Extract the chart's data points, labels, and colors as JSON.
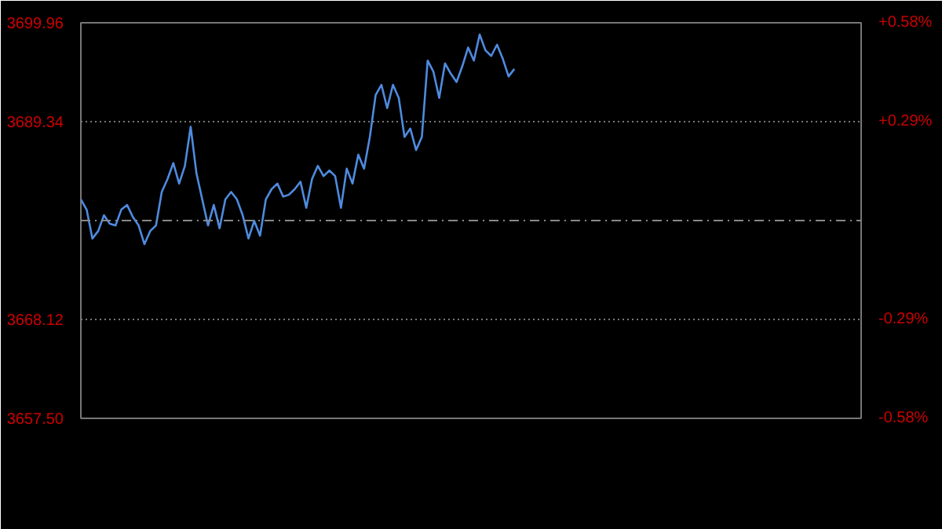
{
  "chart_data": {
    "type": "line",
    "categories": [
      null,
      null,
      null,
      null,
      null,
      null,
      null,
      null,
      null,
      null,
      null,
      null,
      null,
      null,
      null,
      null,
      null,
      null,
      null,
      null,
      null,
      null,
      null,
      null,
      null,
      null,
      null,
      null,
      null,
      null,
      null,
      null,
      null,
      null,
      null,
      null,
      null,
      null,
      null,
      null,
      null,
      null,
      null,
      null,
      null,
      null,
      null,
      null,
      null,
      null,
      null,
      null,
      null,
      null,
      null,
      null,
      null,
      null,
      null,
      null,
      null,
      null,
      null,
      null,
      null,
      null,
      null,
      null,
      null,
      null,
      null,
      null,
      null,
      null,
      null,
      null,
      null,
      null,
      null,
      null,
      null,
      null,
      null,
      null,
      null,
      null,
      null,
      null,
      null,
      null,
      null,
      null,
      null,
      null,
      null,
      null,
      null,
      null,
      null,
      null,
      null,
      null,
      null,
      null,
      null,
      null,
      null,
      null,
      null,
      null,
      null,
      null,
      null,
      null,
      null,
      null,
      null,
      null,
      null,
      null,
      null,
      null,
      null,
      null,
      null,
      null,
      null,
      null,
      null,
      null,
      null,
      null,
      null,
      null,
      null,
      null
    ],
    "series": [
      {
        "color": "#4f8be0",
        "values": [
          3681.0,
          3679.9,
          3676.8,
          3677.6,
          3679.3,
          3678.4,
          3678.2,
          3679.9,
          3680.4,
          3679.1,
          3678.2,
          3676.2,
          3677.6,
          3678.2,
          3681.8,
          3683.2,
          3684.9,
          3682.7,
          3684.6,
          3688.8,
          3683.8,
          3681.0,
          3678.2,
          3680.4,
          3677.9,
          3681.0,
          3681.8,
          3681.0,
          3679.3,
          3676.8,
          3678.7,
          3677.1,
          3681.0,
          3682.1,
          3682.7,
          3681.3,
          3681.5,
          3682.1,
          3682.9,
          3680.1,
          3683.2,
          3684.6,
          3683.5,
          3684.1,
          3683.5,
          3680.1,
          3684.3,
          3682.7,
          3685.8,
          3684.3,
          3687.7,
          3692.2,
          3693.3,
          3690.8,
          3693.3,
          3691.9,
          3687.7,
          3688.6,
          3686.3,
          3687.7,
          3695.9,
          3694.7,
          3691.9,
          3695.6,
          3694.5,
          3693.6,
          3695.3,
          3697.3,
          3695.9,
          3698.7,
          3697.0,
          3696.4,
          3697.6,
          3696.1,
          3694.2,
          3695.0,
          null,
          null,
          null,
          null,
          null,
          null,
          null,
          null,
          null,
          null,
          null,
          null,
          null,
          null,
          null,
          null,
          null,
          null,
          null,
          null,
          null,
          null,
          null,
          null,
          null,
          null,
          null,
          null,
          null,
          null,
          null,
          null,
          null,
          null,
          null,
          null,
          null,
          null,
          null,
          null,
          null,
          null,
          null,
          null,
          null,
          null,
          null,
          null,
          null,
          null,
          null,
          null,
          null,
          null,
          null,
          null,
          null,
          null,
          null,
          null
        ]
      }
    ],
    "ylim": [
      3657.5,
      3699.96
    ],
    "yticks": [
      {
        "value": 3657.5,
        "label": "3657.50"
      },
      {
        "value": 3668.12,
        "label": "3668.12"
      },
      {
        "value": 3689.34,
        "label": "3689.34"
      },
      {
        "value": 3699.96,
        "label": "3699.96"
      }
    ],
    "y2lim": [
      -0.58,
      0.58
    ],
    "y2ticks": [
      {
        "value": -0.58,
        "label": "-0.58%"
      },
      {
        "value": -0.29,
        "label": "-0.29%"
      },
      {
        "value": 0.29,
        "label": "+0.29%"
      },
      {
        "value": 0.58,
        "label": "+0.58%"
      }
    ],
    "ref_lines": [
      {
        "axis": "y",
        "value": 3678.73,
        "line_style": "dashed",
        "color": "#888888"
      }
    ],
    "grid": "y",
    "tick_labels": "y"
  }
}
